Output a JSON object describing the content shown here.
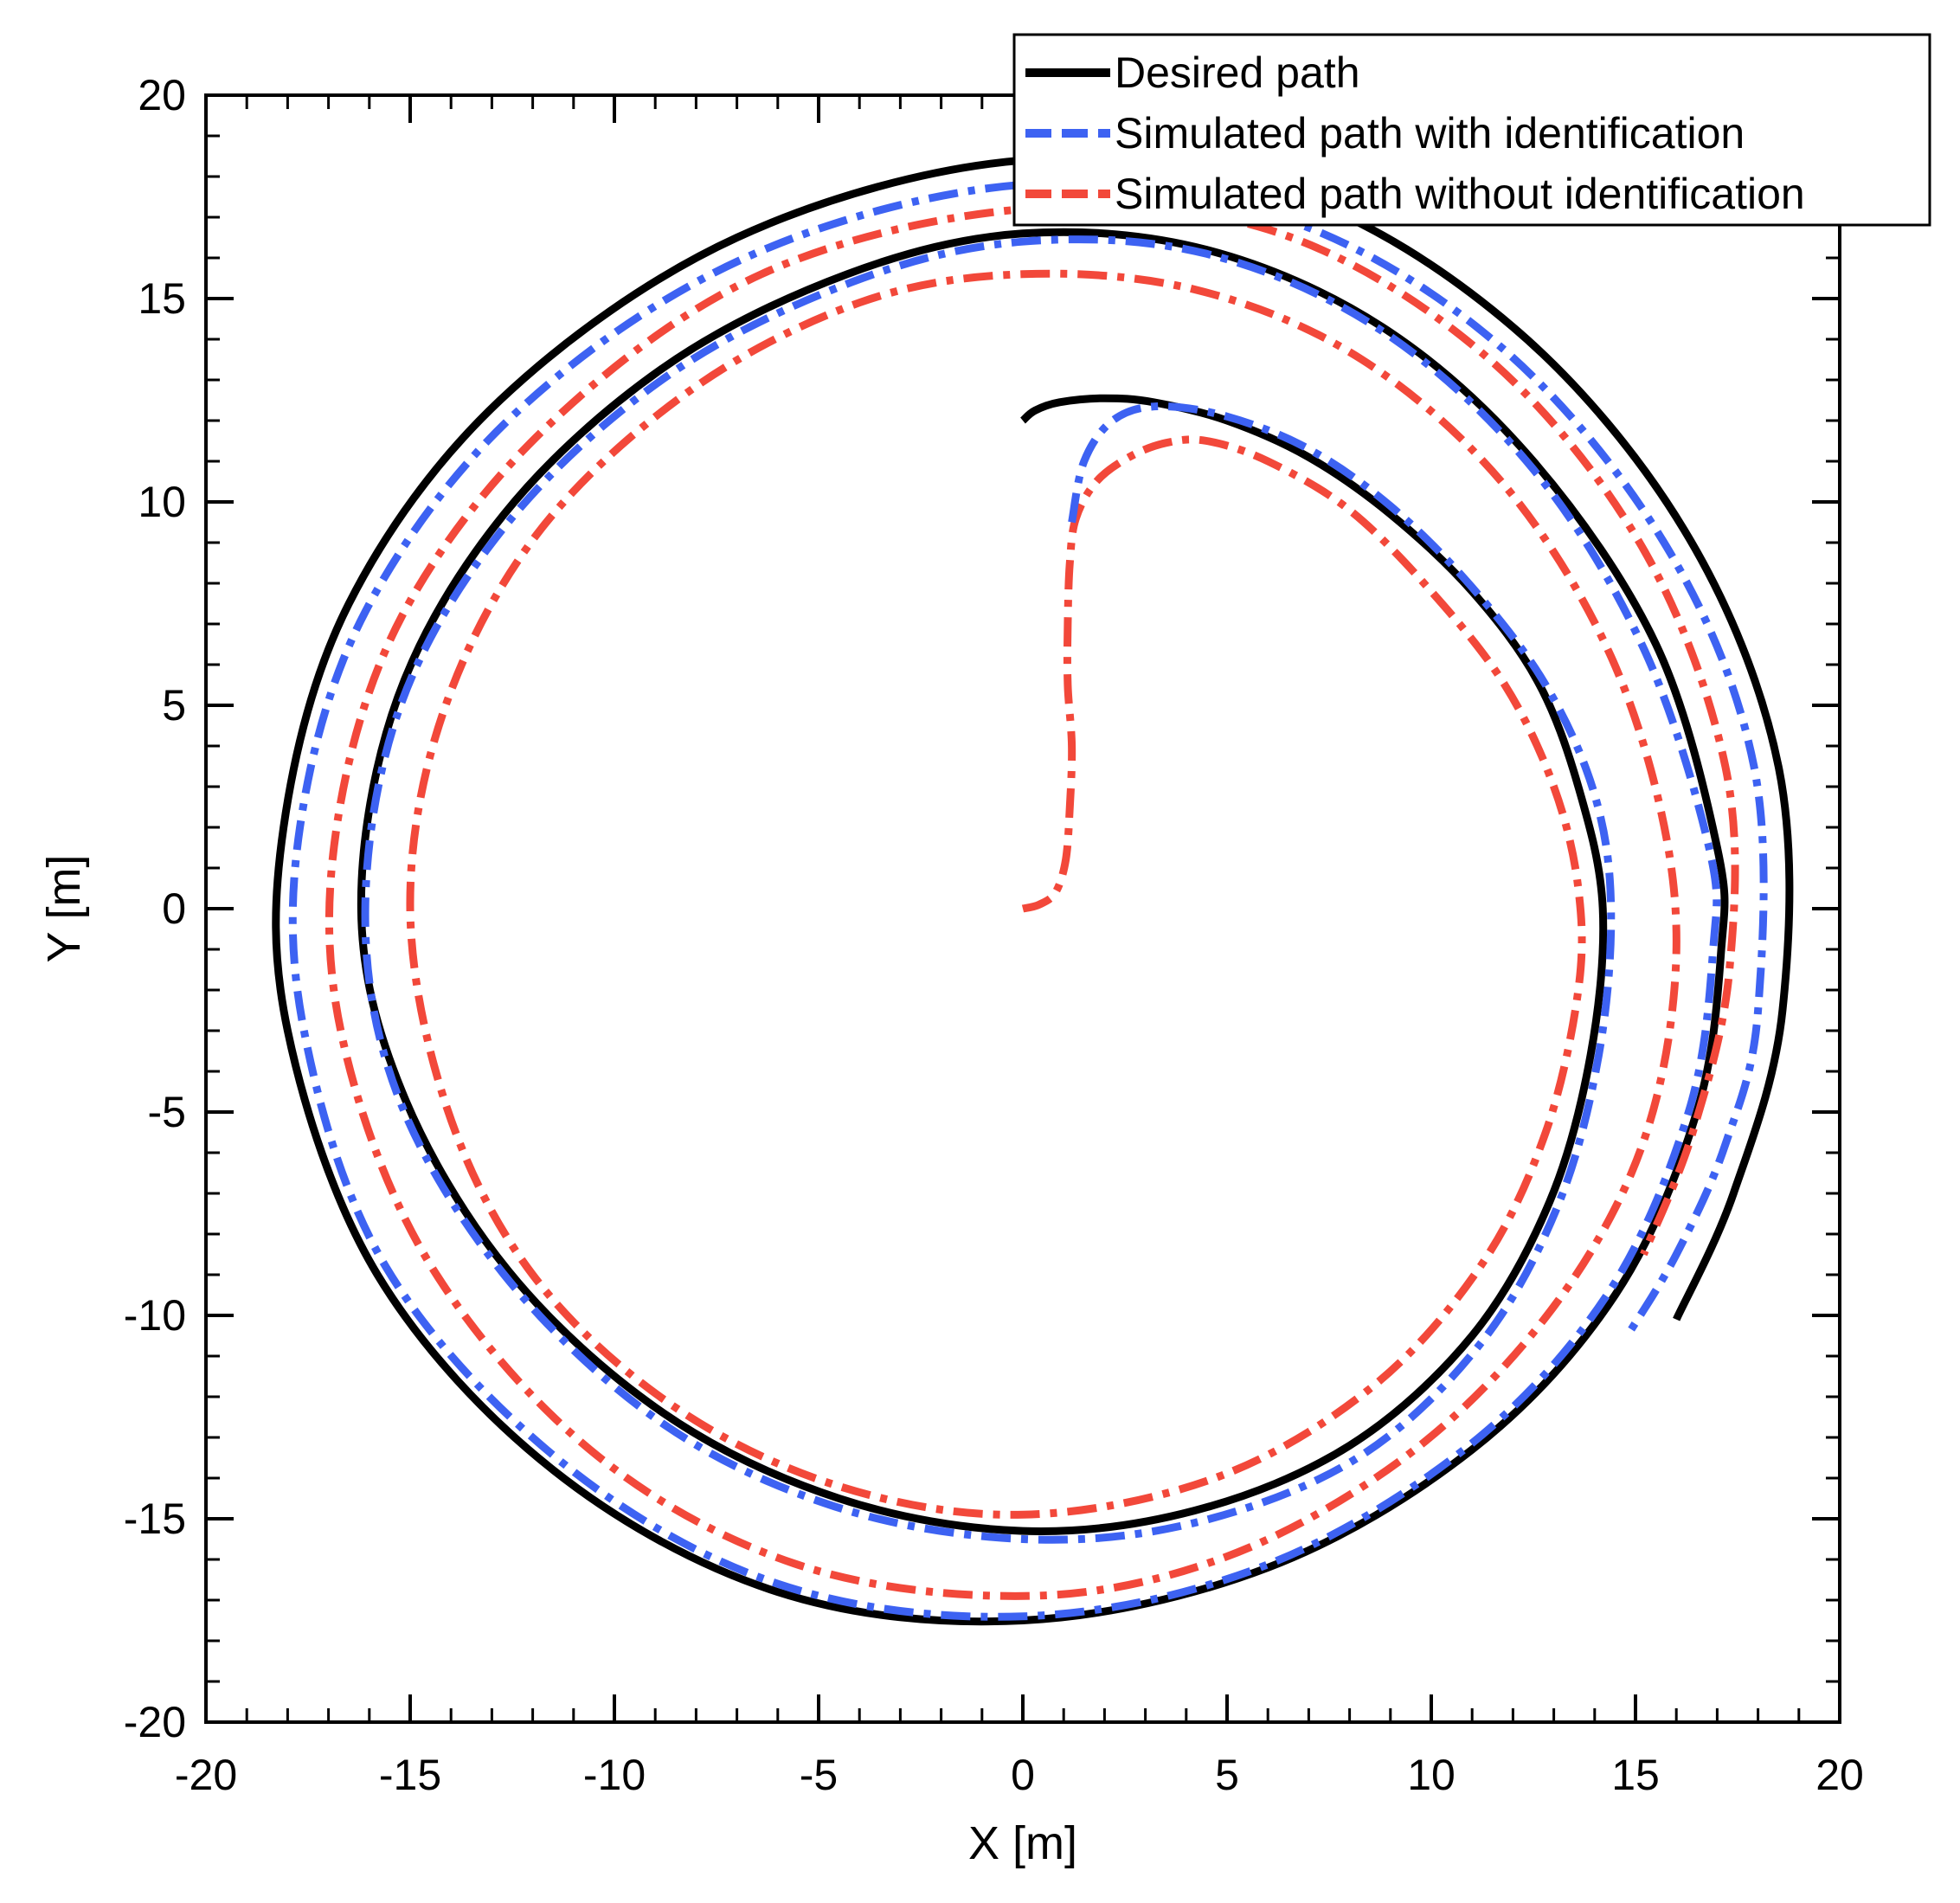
{
  "chart_data": {
    "type": "line",
    "title": "",
    "xlabel": "X [m]",
    "ylabel": "Y [m]",
    "xlim": [
      -20,
      20
    ],
    "ylim": [
      -20,
      20
    ],
    "xticks": [
      -20,
      -15,
      -10,
      -5,
      0,
      5,
      10,
      15,
      20
    ],
    "yticks": [
      -20,
      -15,
      -10,
      -5,
      0,
      5,
      10,
      15,
      20
    ],
    "xtick_labels": [
      "-20",
      "-15",
      "-10",
      "-5",
      "0",
      "5",
      "10",
      "15",
      "20"
    ],
    "ytick_labels": [
      "-20",
      "-15",
      "-10",
      "-5",
      "0",
      "5",
      "10",
      "15",
      "20"
    ],
    "minor_tick_step": 1,
    "grid": false,
    "legend_position": "top-right",
    "series": [
      {
        "name": "Desired path",
        "color": "#000000",
        "style": "solid",
        "points": [
          [
            0.0,
            12.0
          ],
          [
            0.3,
            12.25
          ],
          [
            0.9,
            12.45
          ],
          [
            2.0,
            12.55
          ],
          [
            3.2,
            12.45
          ],
          [
            5.0,
            12.0
          ],
          [
            7.0,
            11.1
          ],
          [
            9.0,
            9.7
          ],
          [
            11.0,
            7.8
          ],
          [
            12.6,
            5.6
          ],
          [
            13.6,
            3.0
          ],
          [
            14.2,
            0.0
          ],
          [
            13.9,
            -3.6
          ],
          [
            12.9,
            -7.2
          ],
          [
            11.0,
            -10.5
          ],
          [
            8.0,
            -13.2
          ],
          [
            4.2,
            -14.8
          ],
          [
            0.0,
            -15.3
          ],
          [
            -4.5,
            -14.5
          ],
          [
            -8.8,
            -12.4
          ],
          [
            -12.6,
            -8.9
          ],
          [
            -15.2,
            -4.5
          ],
          [
            -16.2,
            0.0
          ],
          [
            -15.3,
            5.2
          ],
          [
            -12.7,
            9.7
          ],
          [
            -8.8,
            13.3
          ],
          [
            -4.3,
            15.6
          ],
          [
            0.0,
            16.6
          ],
          [
            4.5,
            16.2
          ],
          [
            8.8,
            14.3
          ],
          [
            12.5,
            11.0
          ],
          [
            15.5,
            6.5
          ],
          [
            17.0,
            1.5
          ],
          [
            17.1,
            -1.0
          ],
          [
            16.5,
            -5.0
          ],
          [
            14.5,
            -9.5
          ],
          [
            11.0,
            -13.3
          ],
          [
            6.0,
            -16.2
          ],
          [
            0.0,
            -17.5
          ],
          [
            -6.0,
            -16.8
          ],
          [
            -11.5,
            -13.8
          ],
          [
            -15.8,
            -9.0
          ],
          [
            -18.0,
            -3.0
          ],
          [
            -18.1,
            2.0
          ],
          [
            -16.5,
            7.5
          ],
          [
            -12.8,
            12.5
          ],
          [
            -7.0,
            16.5
          ],
          [
            0.0,
            18.4
          ],
          [
            6.5,
            17.6
          ],
          [
            12.0,
            14.3
          ],
          [
            16.2,
            9.3
          ],
          [
            18.5,
            3.5
          ],
          [
            18.6,
            -2.5
          ],
          [
            17.4,
            -7.0
          ],
          [
            16.0,
            -10.1
          ]
        ]
      },
      {
        "name": "Simulated path with identification",
        "color": "#3d62f2",
        "style": "dash-dot",
        "points": [
          [
            1.2,
            9.5
          ],
          [
            1.5,
            11.0
          ],
          [
            2.2,
            12.0
          ],
          [
            3.3,
            12.35
          ],
          [
            5.0,
            12.1
          ],
          [
            7.0,
            11.3
          ],
          [
            9.0,
            9.9
          ],
          [
            11.0,
            7.9
          ],
          [
            12.8,
            5.5
          ],
          [
            14.0,
            2.8
          ],
          [
            14.4,
            0.0
          ],
          [
            14.1,
            -3.6
          ],
          [
            13.1,
            -7.3
          ],
          [
            11.2,
            -10.7
          ],
          [
            8.2,
            -13.5
          ],
          [
            4.2,
            -15.1
          ],
          [
            0.0,
            -15.5
          ],
          [
            -4.6,
            -14.7
          ],
          [
            -8.9,
            -12.6
          ],
          [
            -12.7,
            -9.0
          ],
          [
            -15.3,
            -4.6
          ],
          [
            -16.1,
            0.0
          ],
          [
            -15.2,
            5.1
          ],
          [
            -12.6,
            9.5
          ],
          [
            -8.7,
            13.1
          ],
          [
            -4.2,
            15.4
          ],
          [
            0.0,
            16.4
          ],
          [
            4.5,
            16.1
          ],
          [
            8.8,
            14.2
          ],
          [
            12.5,
            10.8
          ],
          [
            15.2,
            6.4
          ],
          [
            16.8,
            1.5
          ],
          [
            16.9,
            -1.0
          ],
          [
            16.3,
            -5.0
          ],
          [
            14.3,
            -9.5
          ],
          [
            10.8,
            -13.3
          ],
          [
            5.8,
            -16.2
          ],
          [
            0.0,
            -17.4
          ],
          [
            -6.0,
            -16.6
          ],
          [
            -11.3,
            -13.6
          ],
          [
            -15.6,
            -8.8
          ],
          [
            -17.6,
            -3.0
          ],
          [
            -17.7,
            2.0
          ],
          [
            -16.1,
            7.3
          ],
          [
            -12.4,
            12.2
          ],
          [
            -6.8,
            16.0
          ],
          [
            0.0,
            17.8
          ],
          [
            6.3,
            17.0
          ],
          [
            11.6,
            13.9
          ],
          [
            15.7,
            9.0
          ],
          [
            17.9,
            3.5
          ],
          [
            18.0,
            -2.5
          ],
          [
            17.2,
            -5.8
          ],
          [
            16.0,
            -8.5
          ],
          [
            14.8,
            -10.5
          ]
        ]
      },
      {
        "name": "Simulated path without identification",
        "color": "#f2483a",
        "style": "dash-dot",
        "points": [
          [
            0.0,
            0.0
          ],
          [
            0.4,
            0.1
          ],
          [
            0.8,
            0.4
          ],
          [
            1.05,
            1.2
          ],
          [
            1.15,
            2.5
          ],
          [
            1.2,
            4.0
          ],
          [
            1.1,
            5.5
          ],
          [
            1.1,
            7.0
          ],
          [
            1.15,
            8.5
          ],
          [
            1.3,
            9.6
          ],
          [
            1.8,
            10.5
          ],
          [
            2.6,
            11.1
          ],
          [
            3.5,
            11.45
          ],
          [
            4.5,
            11.5
          ],
          [
            6.0,
            11.0
          ],
          [
            8.0,
            9.8
          ],
          [
            10.0,
            7.8
          ],
          [
            11.8,
            5.5
          ],
          [
            13.0,
            3.0
          ],
          [
            13.6,
            0.5
          ],
          [
            13.6,
            -2.0
          ],
          [
            12.8,
            -5.5
          ],
          [
            11.2,
            -8.8
          ],
          [
            8.5,
            -11.8
          ],
          [
            4.7,
            -14.0
          ],
          [
            0.0,
            -14.9
          ],
          [
            -4.5,
            -14.2
          ],
          [
            -8.6,
            -12.2
          ],
          [
            -12.0,
            -9.0
          ],
          [
            -14.1,
            -4.9
          ],
          [
            -15.0,
            0.0
          ],
          [
            -14.2,
            4.8
          ],
          [
            -11.9,
            9.2
          ],
          [
            -8.2,
            12.7
          ],
          [
            -4.0,
            14.9
          ],
          [
            0.0,
            15.6
          ],
          [
            4.3,
            15.2
          ],
          [
            8.3,
            13.5
          ],
          [
            11.8,
            10.4
          ],
          [
            14.4,
            6.2
          ],
          [
            15.8,
            1.5
          ],
          [
            15.9,
            -2.5
          ],
          [
            14.9,
            -6.5
          ],
          [
            12.6,
            -10.3
          ],
          [
            9.2,
            -13.6
          ],
          [
            4.8,
            -16.0
          ],
          [
            0.0,
            -16.9
          ],
          [
            -5.6,
            -16.1
          ],
          [
            -10.6,
            -13.3
          ],
          [
            -14.6,
            -8.6
          ],
          [
            -16.7,
            -3.0
          ],
          [
            -16.8,
            2.0
          ],
          [
            -15.2,
            7.2
          ],
          [
            -11.6,
            11.9
          ],
          [
            -6.4,
            15.6
          ],
          [
            0.0,
            17.2
          ],
          [
            6.0,
            16.7
          ],
          [
            11.2,
            13.7
          ],
          [
            15.1,
            9.0
          ],
          [
            17.2,
            3.5
          ],
          [
            17.3,
            -1.5
          ],
          [
            16.4,
            -5.5
          ],
          [
            15.2,
            -8.5
          ]
        ]
      }
    ]
  }
}
